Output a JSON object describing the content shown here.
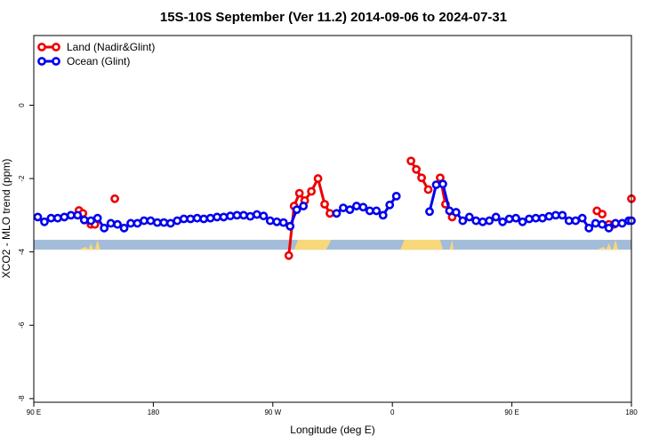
{
  "chart_data": {
    "type": "line",
    "title": "15S-10S September (Ver 11.2)   2014-09-06 to 2024-07-31",
    "xlabel": "Longitude (deg E)",
    "ylabel": "XCO2 - MLO trend (ppm)",
    "xlim": [
      90,
      540
    ],
    "ylim": [
      -8.1,
      1.9
    ],
    "x_ticks": [
      {
        "value": 90,
        "label": "90 E"
      },
      {
        "value": 180,
        "label": "180"
      },
      {
        "value": 270,
        "label": "90 W"
      },
      {
        "value": 360,
        "label": "0"
      },
      {
        "value": 450,
        "label": "90 E"
      },
      {
        "value": 540,
        "label": "180"
      }
    ],
    "y_ticks": [
      {
        "value": 0,
        "label": "0"
      },
      {
        "value": -2,
        "label": "-2"
      },
      {
        "value": -4,
        "label": "-4"
      },
      {
        "value": -6,
        "label": "-6"
      },
      {
        "value": -8,
        "label": "-8"
      }
    ],
    "grid": false,
    "legend_position": "top-left",
    "land_mask_band": {
      "y_top": -3.67,
      "y_bottom": -3.94,
      "ocean_color": "#a3bcd9",
      "land_color": "#f7d87a"
    },
    "series": [
      {
        "name": "Land (Nadir&Glint)",
        "color": "#ee0000",
        "segments": [
          [
            [
              124,
              -2.87
            ],
            [
              127,
              -2.95
            ]
          ],
          [
            [
              133,
              -3.25
            ],
            [
              136,
              -3.25
            ]
          ],
          [
            [
              151,
              -2.55
            ]
          ],
          [
            [
              282,
              -4.1
            ],
            [
              286,
              -2.75
            ],
            [
              290,
              -2.4
            ],
            [
              294,
              -2.6
            ],
            [
              299,
              -2.35
            ],
            [
              304,
              -2.0
            ],
            [
              309,
              -2.7
            ],
            [
              313,
              -2.95
            ]
          ],
          [
            [
              374,
              -1.52
            ],
            [
              378,
              -1.75
            ],
            [
              382,
              -1.98
            ],
            [
              387,
              -2.3
            ]
          ],
          [
            [
              396,
              -1.98
            ],
            [
              400,
              -2.7
            ],
            [
              405,
              -3.05
            ]
          ],
          [
            [
              514,
              -2.88
            ],
            [
              518,
              -2.97
            ]
          ],
          [
            [
              523,
              -3.25
            ],
            [
              527,
              -3.25
            ]
          ],
          [
            [
              540,
              -2.55
            ]
          ]
        ]
      },
      {
        "name": "Ocean (Glint)",
        "color": "#0000ee",
        "segments": [
          [
            [
              93,
              -3.05
            ],
            [
              98,
              -3.18
            ],
            [
              103,
              -3.08
            ],
            [
              108,
              -3.08
            ],
            [
              113,
              -3.05
            ],
            [
              118,
              -3.0
            ],
            [
              123,
              -3.0
            ],
            [
              128,
              -3.13
            ],
            [
              133,
              -3.15
            ],
            [
              138,
              -3.08
            ],
            [
              143,
              -3.35
            ],
            [
              148,
              -3.22
            ],
            [
              153,
              -3.25
            ],
            [
              158,
              -3.35
            ],
            [
              163,
              -3.22
            ],
            [
              168,
              -3.22
            ],
            [
              173,
              -3.15
            ],
            [
              178,
              -3.15
            ],
            [
              183,
              -3.2
            ],
            [
              188,
              -3.2
            ],
            [
              193,
              -3.22
            ],
            [
              198,
              -3.15
            ],
            [
              203,
              -3.1
            ],
            [
              208,
              -3.1
            ],
            [
              213,
              -3.08
            ],
            [
              218,
              -3.1
            ],
            [
              223,
              -3.08
            ],
            [
              228,
              -3.05
            ],
            [
              233,
              -3.05
            ],
            [
              238,
              -3.02
            ],
            [
              243,
              -3.0
            ],
            [
              248,
              -3.0
            ],
            [
              253,
              -3.03
            ],
            [
              258,
              -2.98
            ],
            [
              263,
              -3.02
            ],
            [
              268,
              -3.15
            ],
            [
              273,
              -3.18
            ],
            [
              278,
              -3.2
            ],
            [
              283,
              -3.3
            ],
            [
              288,
              -2.85
            ],
            [
              293,
              -2.75
            ]
          ],
          [
            [
              318,
              -2.95
            ],
            [
              323,
              -2.8
            ],
            [
              328,
              -2.85
            ],
            [
              333,
              -2.75
            ],
            [
              338,
              -2.78
            ],
            [
              343,
              -2.88
            ],
            [
              348,
              -2.88
            ],
            [
              353,
              -3.0
            ],
            [
              358,
              -2.72
            ],
            [
              363,
              -2.48
            ]
          ],
          [
            [
              388,
              -2.9
            ],
            [
              393,
              -2.17
            ],
            [
              398,
              -2.15
            ],
            [
              403,
              -2.88
            ],
            [
              408,
              -2.92
            ],
            [
              413,
              -3.15
            ],
            [
              418,
              -3.05
            ],
            [
              423,
              -3.15
            ],
            [
              428,
              -3.18
            ],
            [
              433,
              -3.15
            ],
            [
              438,
              -3.05
            ],
            [
              443,
              -3.18
            ],
            [
              448,
              -3.1
            ],
            [
              453,
              -3.08
            ],
            [
              458,
              -3.18
            ],
            [
              463,
              -3.1
            ],
            [
              468,
              -3.08
            ],
            [
              473,
              -3.08
            ],
            [
              478,
              -3.03
            ],
            [
              483,
              -3.0
            ],
            [
              488,
              -3.0
            ],
            [
              493,
              -3.15
            ],
            [
              498,
              -3.15
            ],
            [
              503,
              -3.08
            ],
            [
              508,
              -3.35
            ],
            [
              513,
              -3.22
            ],
            [
              518,
              -3.25
            ],
            [
              523,
              -3.35
            ],
            [
              528,
              -3.22
            ],
            [
              533,
              -3.22
            ],
            [
              538,
              -3.15
            ],
            [
              540,
              -3.15
            ]
          ]
        ]
      }
    ]
  }
}
